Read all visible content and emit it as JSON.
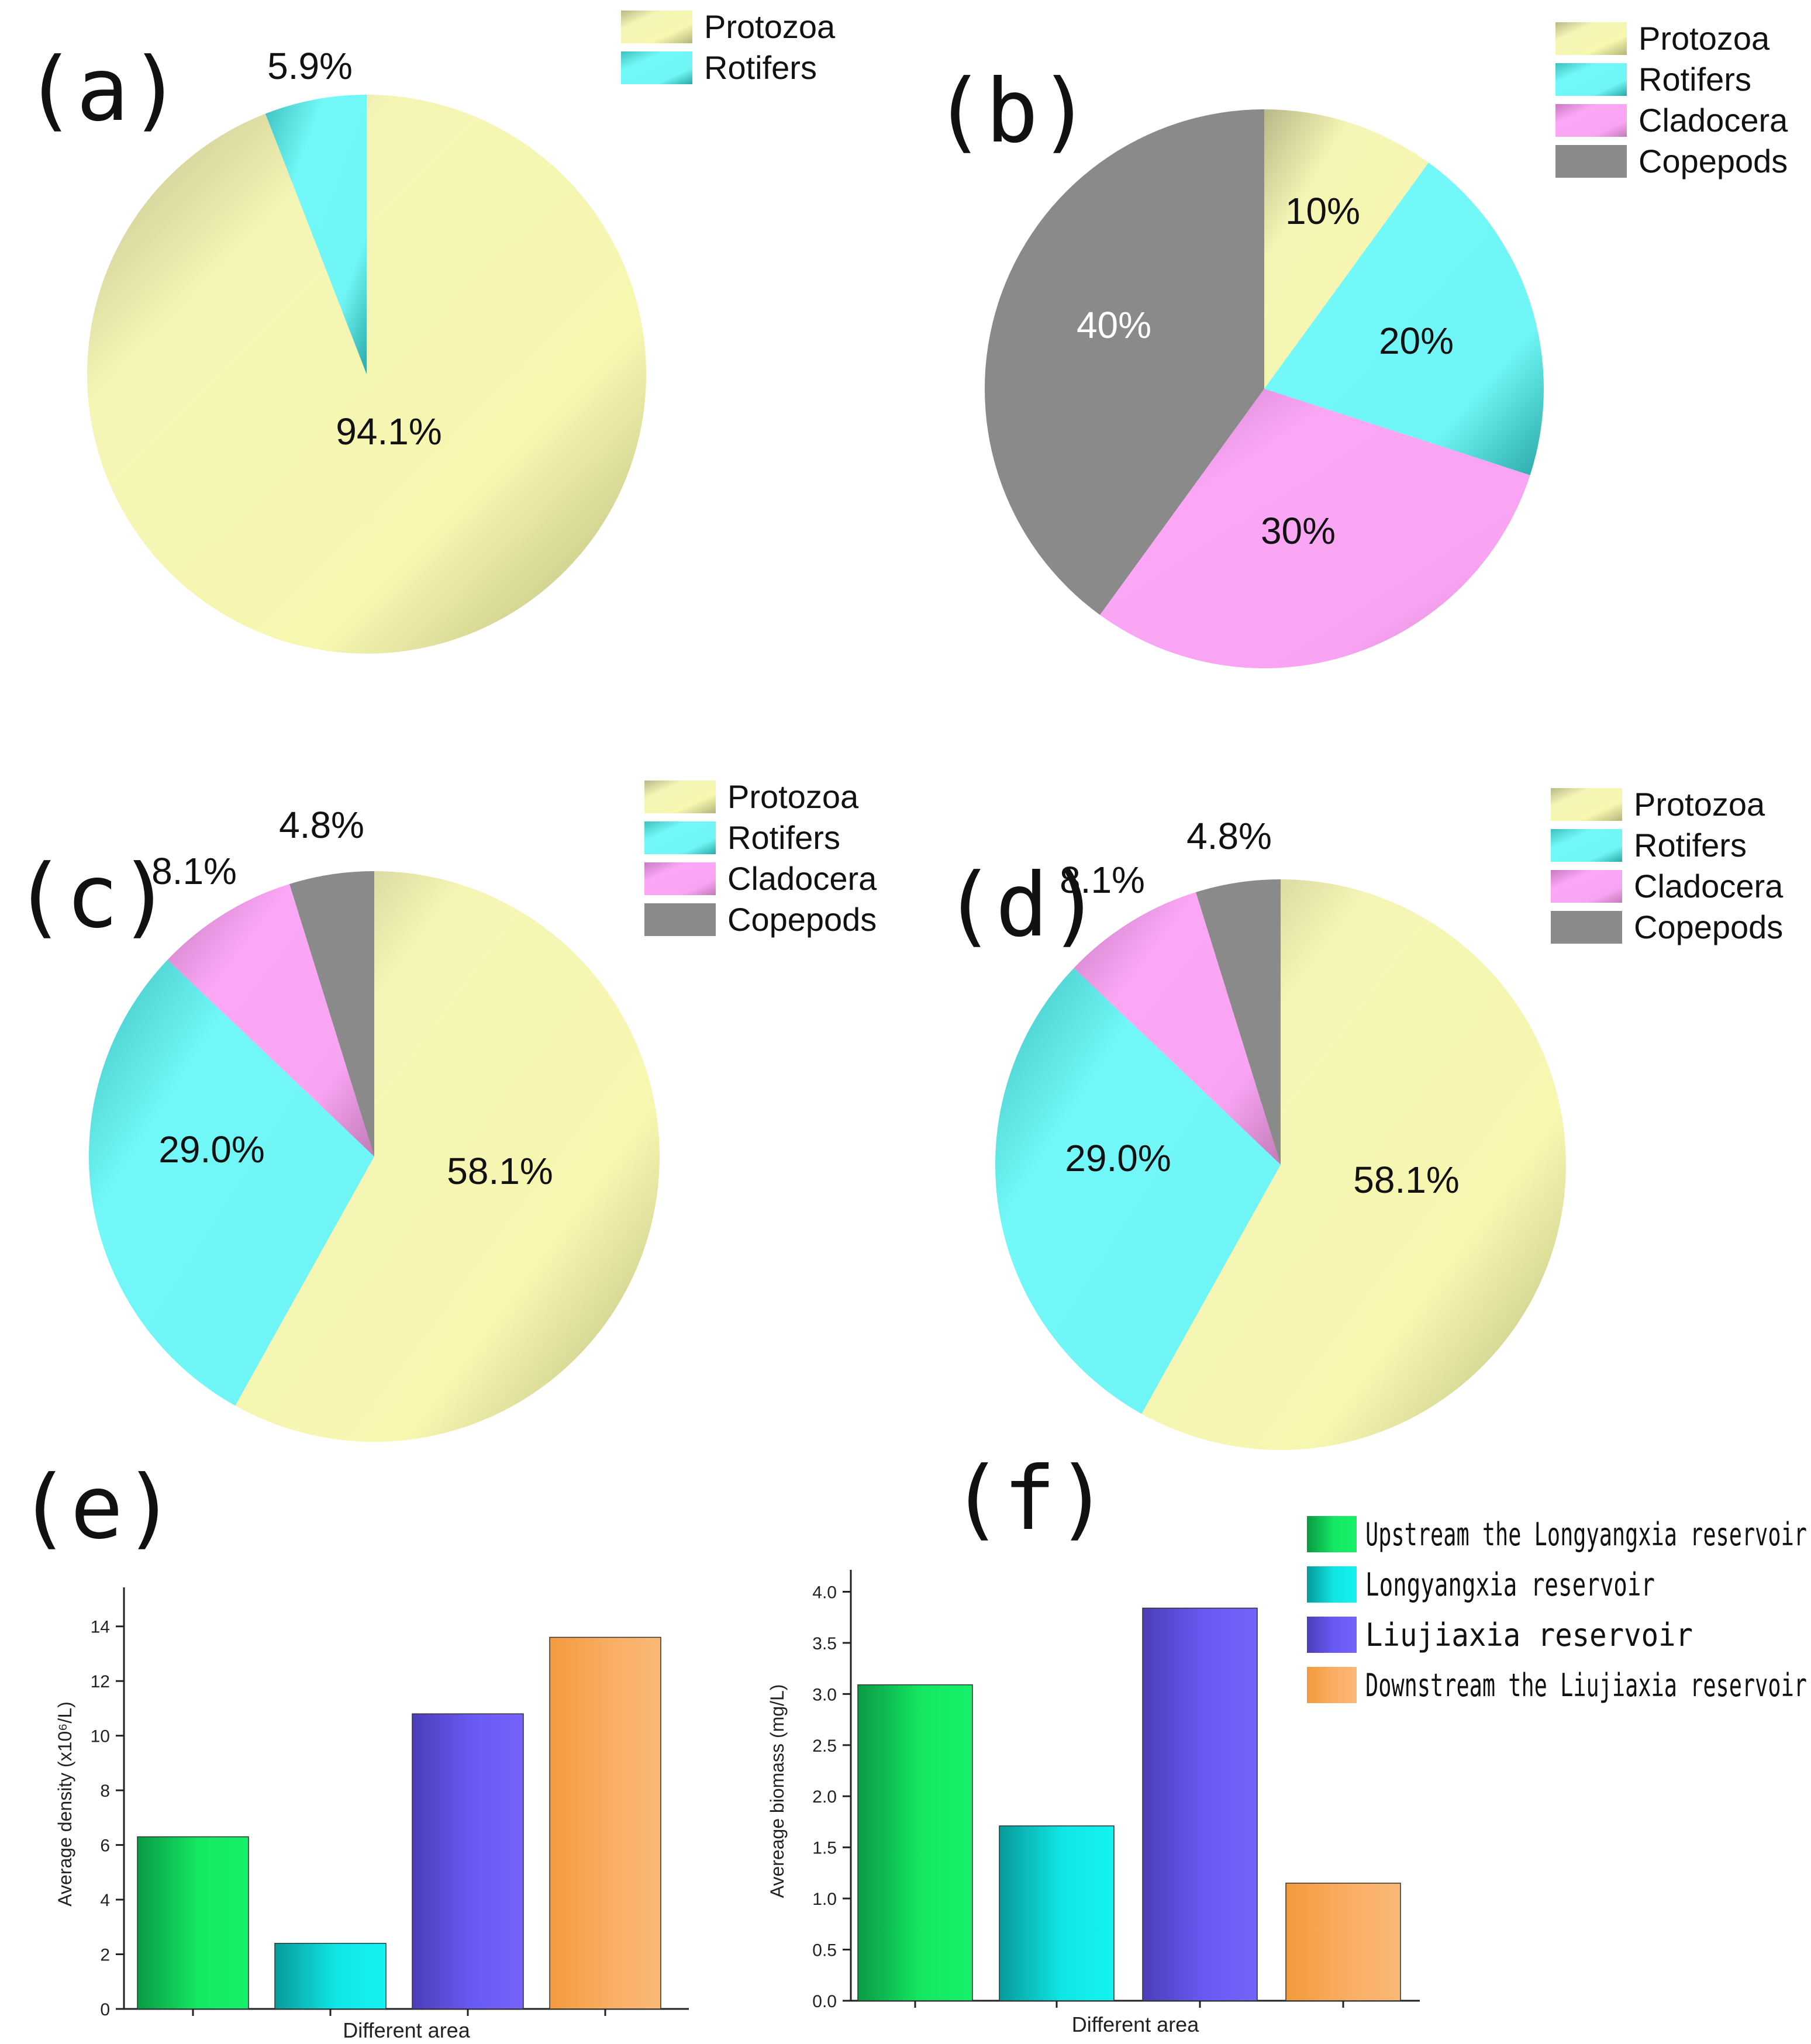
{
  "colors": {
    "protozoa": "#f6f6b2",
    "rotifers": "#6ff5f5",
    "cladocera": "#f9a4f3",
    "copepods": "#8c8c8c",
    "upstream": "#12e460",
    "longyangxia": "#0ee6e6",
    "liujiaxia": "#6a5af5",
    "downstream": "#f9a85c"
  },
  "chart_data": [
    {
      "panel": "a",
      "type": "pie",
      "panel_label": "(a)",
      "labels": [
        "Protozoa",
        "Rotifers"
      ],
      "values": [
        94.1,
        5.9
      ],
      "value_labels": [
        "94.1%",
        "5.9%"
      ],
      "legend": [
        "Protozoa",
        "Rotifers"
      ],
      "legend_position": "top-right"
    },
    {
      "panel": "b",
      "type": "pie",
      "panel_label": "(b)",
      "labels": [
        "Protozoa",
        "Rotifers",
        "Cladocera",
        "Copepods"
      ],
      "values": [
        10,
        20,
        30,
        40
      ],
      "value_labels": [
        "10%",
        "20%",
        "30%",
        "40%"
      ],
      "legend": [
        "Protozoa",
        "Rotifers",
        "Cladocera",
        "Copepods"
      ],
      "legend_position": "top-right"
    },
    {
      "panel": "c",
      "type": "pie",
      "panel_label": "(c)",
      "labels": [
        "Protozoa",
        "Rotifers",
        "Cladocera",
        "Copepods"
      ],
      "values": [
        58.1,
        29.0,
        8.1,
        4.8
      ],
      "value_labels": [
        "58.1%",
        "29.0%",
        "8.1%",
        "4.8%"
      ],
      "legend": [
        "Protozoa",
        "Rotifers",
        "Cladocera",
        "Copepods"
      ],
      "legend_position": "top-right"
    },
    {
      "panel": "d",
      "type": "pie",
      "panel_label": "(d)",
      "labels": [
        "Protozoa",
        "Rotifers",
        "Cladocera",
        "Copepods"
      ],
      "values": [
        58.1,
        29.0,
        8.1,
        4.8
      ],
      "value_labels": [
        "58.1%",
        "29.0%",
        "8.1%",
        "4.8%"
      ],
      "legend": [
        "Protozoa",
        "Rotifers",
        "Cladocera",
        "Copepods"
      ],
      "legend_position": "top-right"
    },
    {
      "panel": "e",
      "type": "bar",
      "panel_label": "(e)",
      "categories": [
        "Upstream the Longyangxia reservoir",
        "Longyangxia reservoir",
        "Liujiaxia reservoir",
        "Downstream the Liujiaxia reservoir"
      ],
      "values": [
        6.3,
        2.4,
        10.8,
        13.6
      ],
      "xlabel": "Different area",
      "ylabel": "Average density (x10⁶/L)",
      "ylim": [
        0,
        15
      ],
      "yticks": [
        "0",
        "2",
        "4",
        "6",
        "8",
        "10",
        "12",
        "14"
      ]
    },
    {
      "panel": "f",
      "type": "bar",
      "panel_label": "(f)",
      "categories": [
        "Upstream the Longyangxia reservoir",
        "Longyangxia reservoir",
        "Liujiaxia reservoir",
        "Downstream the Liujiaxia reservoir"
      ],
      "values": [
        3.09,
        1.71,
        3.84,
        1.15
      ],
      "xlabel": "Different area",
      "ylabel": "Avereage biomass (mg/L)",
      "ylim": [
        0,
        4.1
      ],
      "yticks": [
        "0.0",
        "0.5",
        "1.0",
        "1.5",
        "2.0",
        "2.5",
        "3.0",
        "3.5",
        "4.0"
      ],
      "legend": [
        "Upstream the Longyangxia reservoir",
        "Longyangxia reservoir",
        "Liujiaxia reservoir",
        "Downstream the Liujiaxia reservoir"
      ],
      "legend_position": "top-right"
    }
  ]
}
